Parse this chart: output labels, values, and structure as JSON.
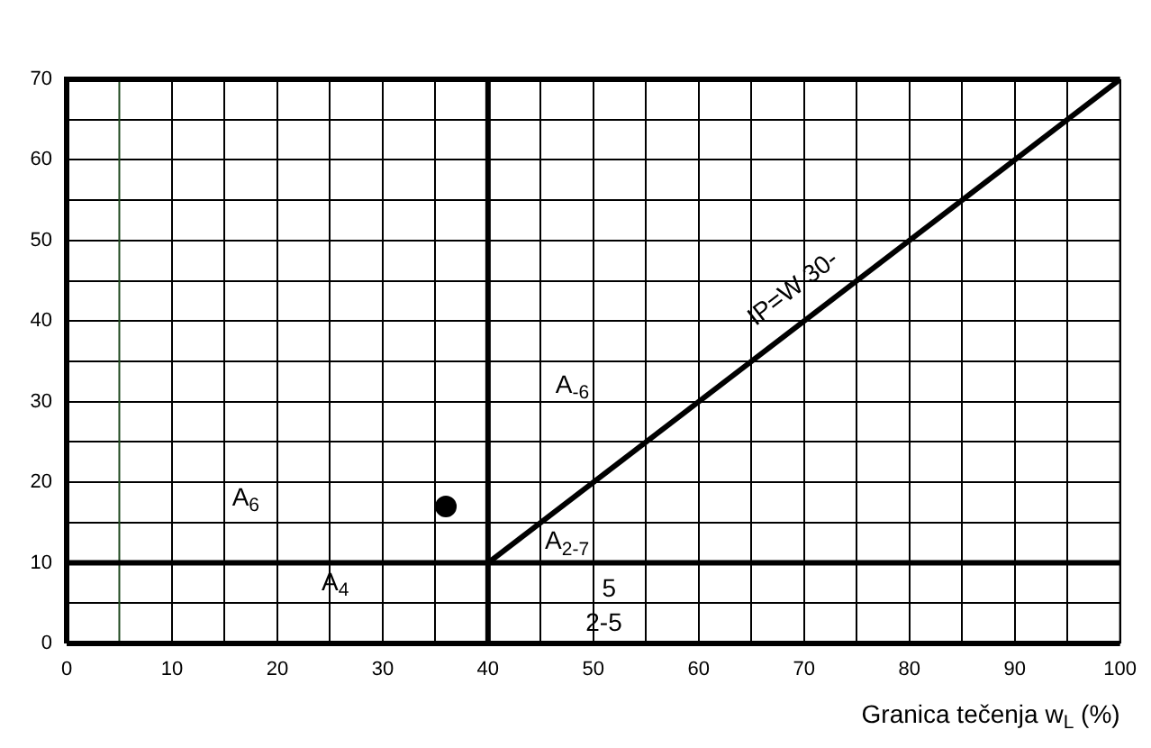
{
  "chart_data": {
    "type": "scatter",
    "xlabel": "Granica tečenja w$_{L}$ (%)",
    "xlim": [
      0,
      100
    ],
    "ylim": [
      0,
      70
    ],
    "xticks": [
      0,
      10,
      {
        "value": 15,
        "label": null
      },
      20,
      {
        "value": 25,
        "label": null
      },
      30,
      {
        "value": 35,
        "label": null
      },
      40,
      {
        "value": 45,
        "label": null
      },
      50,
      {
        "value": 55,
        "label": null
      },
      60,
      {
        "value": 65,
        "label": null
      },
      70,
      {
        "value": 75,
        "label": null
      },
      80,
      {
        "value": 85,
        "label": null
      },
      90,
      {
        "value": 95,
        "label": null
      },
      100
    ],
    "yticks": [
      0,
      {
        "value": 5,
        "label": null
      },
      10,
      {
        "value": 15,
        "label": null
      },
      20,
      {
        "value": 25,
        "label": null
      },
      30,
      {
        "value": 35,
        "label": null
      },
      40,
      {
        "value": 45,
        "label": null
      },
      50,
      {
        "value": 55,
        "label": null
      },
      60,
      {
        "value": 65,
        "label": null
      },
      70
    ],
    "grid": true,
    "legend": false,
    "series": [
      {
        "type": "line",
        "color": "#000000",
        "x": [
          40,
          100
        ],
        "values": [
          10,
          70
        ],
        "marker": "none",
        "line_style": "solid"
      },
      {
        "type": "line",
        "color": "#000000",
        "x": [
          40,
          40
        ],
        "values": [
          0,
          70
        ],
        "marker": "none",
        "line_style": "solid"
      },
      {
        "type": "line",
        "color": "#000000",
        "x": [
          0,
          100
        ],
        "values": [
          10,
          10
        ],
        "marker": "none",
        "line_style": "solid"
      },
      {
        "type": "line",
        "color": "#1f4a1f",
        "x": [
          5,
          5
        ],
        "values": [
          0,
          70
        ],
        "marker": "none",
        "line_style": "solid"
      },
      {
        "type": "scatter",
        "color": "#000000",
        "x": [
          36
        ],
        "values": [
          17
        ],
        "marker": "circle"
      }
    ],
    "annotations": [
      "A$_{6}$",
      "A$_{4}$",
      "A$_{-6}$",
      "A$_{2-7}$",
      "5",
      "2-5",
      "IP=W 30-"
    ]
  }
}
